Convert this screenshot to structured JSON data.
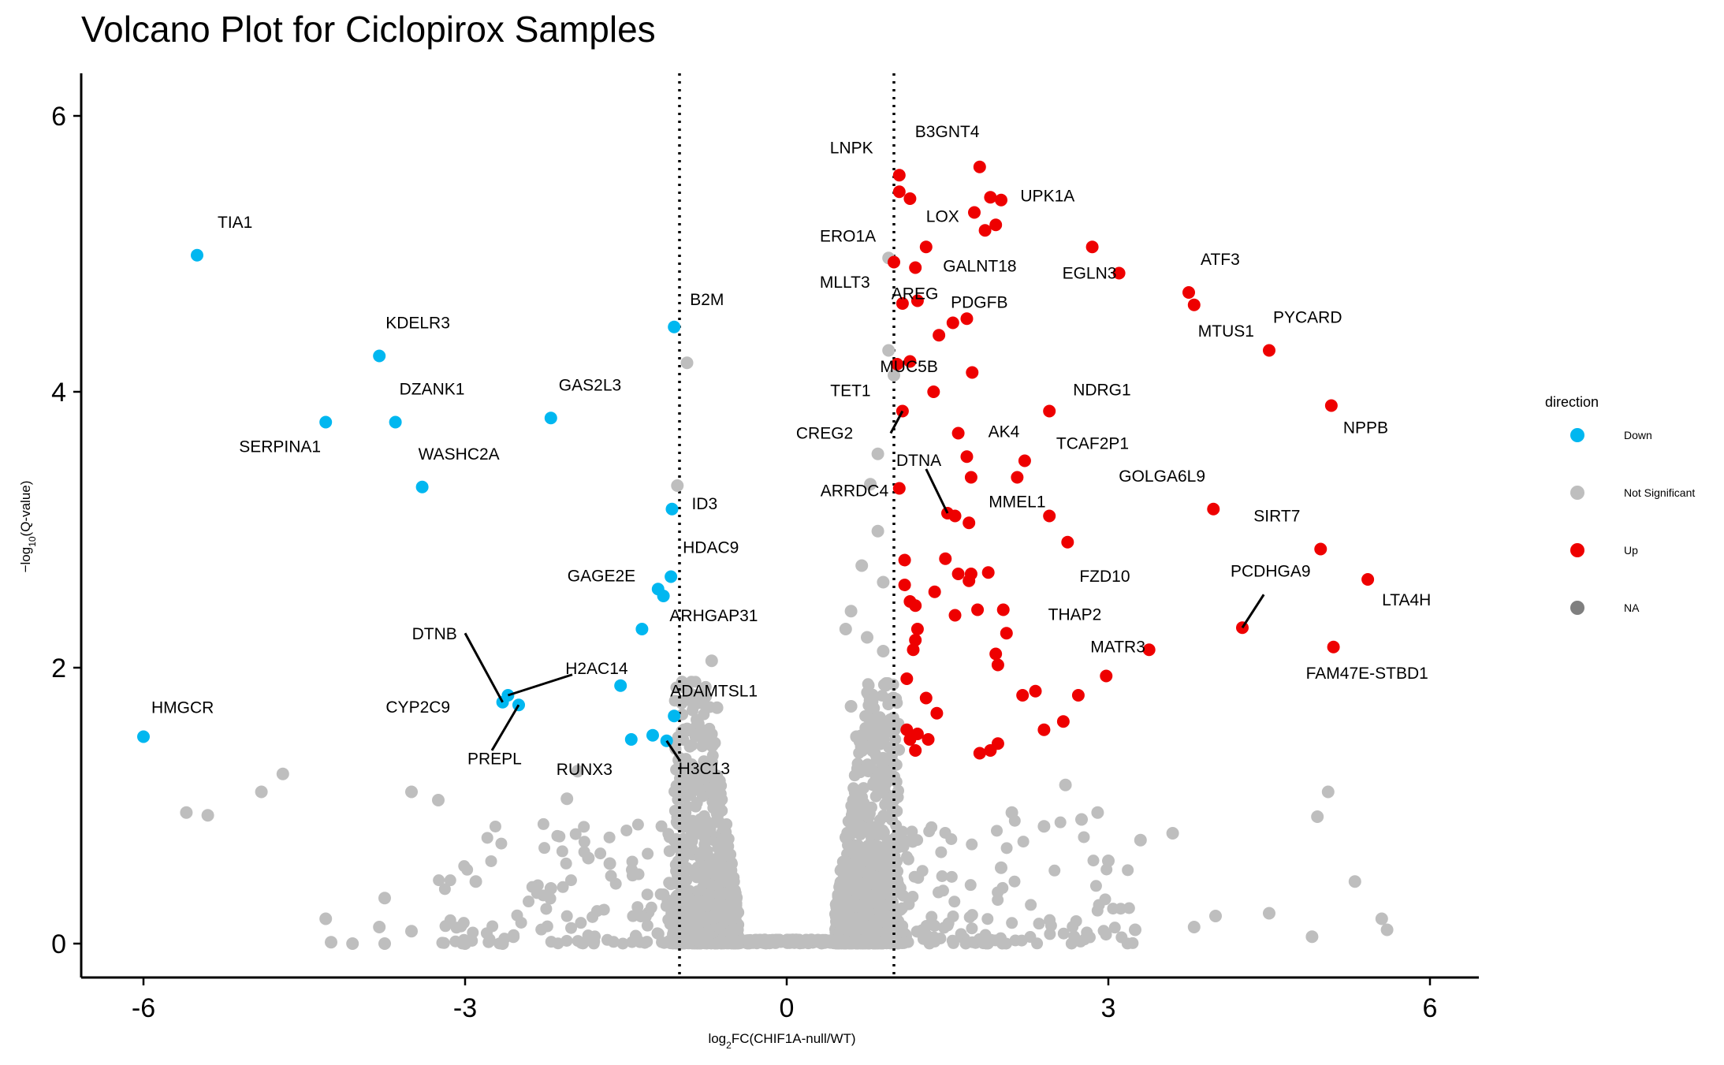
{
  "chart_data": {
    "type": "scatter",
    "title": "Volcano Plot for Ciclopirox Samples",
    "xlabel": "log2FC(CHIF1A-null/WT)",
    "ylabel": "-log10(Q-value)",
    "xlim": [
      -6.6,
      6.6
    ],
    "ylim": [
      -0.3,
      6.3
    ],
    "xticks": [
      "-6",
      "-3",
      "0",
      "3",
      "6"
    ],
    "yticks": [
      "0",
      "2",
      "4",
      "6"
    ],
    "threshold_lines_x": [
      -1,
      1
    ],
    "grid": false,
    "legend": {
      "title": "direction",
      "position": "right",
      "entries": [
        {
          "label": "Down",
          "color": "#00B7F0"
        },
        {
          "label": "Not Significant",
          "color": "#BEBEBE"
        },
        {
          "label": "Up",
          "color": "#EE0000"
        },
        {
          "label": "NA",
          "color": "#7F7F7F"
        }
      ]
    },
    "colors": {
      "Down": "#00B7F0",
      "Not Significant": "#BEBEBE",
      "Up": "#EE0000"
    },
    "series": [
      {
        "name": "Down",
        "points": [
          {
            "x": -5.5,
            "y": 4.99,
            "label": "TIA1"
          },
          {
            "x": -3.8,
            "y": 4.26,
            "label": "KDELR3"
          },
          {
            "x": -4.3,
            "y": 3.78,
            "label": "SERPINA1"
          },
          {
            "x": -3.65,
            "y": 3.78,
            "label": "DZANK1"
          },
          {
            "x": -2.2,
            "y": 3.81,
            "label": "GAS2L3"
          },
          {
            "x": -3.4,
            "y": 3.31,
            "label": "WASHC2A"
          },
          {
            "x": -1.05,
            "y": 4.47,
            "label": "B2M"
          },
          {
            "x": -1.07,
            "y": 3.15,
            "label": "ID3"
          },
          {
            "x": -1.08,
            "y": 2.66,
            "label": "HDAC9"
          },
          {
            "x": -1.2,
            "y": 2.57,
            "label": "GAGE2E"
          },
          {
            "x": -1.15,
            "y": 2.52
          },
          {
            "x": -1.35,
            "y": 2.28,
            "label": "ARHGAP31"
          },
          {
            "x": -1.55,
            "y": 1.87,
            "label": "H2AC14"
          },
          {
            "x": -2.65,
            "y": 1.75,
            "label": "DTNB"
          },
          {
            "x": -2.6,
            "y": 1.8,
            "label": "CYP2C9"
          },
          {
            "x": -2.5,
            "y": 1.73,
            "label": "PREPL"
          },
          {
            "x": -1.05,
            "y": 1.65,
            "label": "ADAMTSL1"
          },
          {
            "x": -1.45,
            "y": 1.48,
            "label": "RUNX3"
          },
          {
            "x": -1.25,
            "y": 1.51
          },
          {
            "x": -1.12,
            "y": 1.47,
            "label": "H3C13"
          },
          {
            "x": -6.0,
            "y": 1.5,
            "label": "HMGCR"
          }
        ]
      },
      {
        "name": "Up",
        "points": [
          {
            "x": 1.05,
            "y": 5.57,
            "label": "LNPK"
          },
          {
            "x": 1.05,
            "y": 5.45
          },
          {
            "x": 1.15,
            "y": 5.4
          },
          {
            "x": 1.8,
            "y": 5.63,
            "label": "B3GNT4"
          },
          {
            "x": 1.9,
            "y": 5.41,
            "label": "UPK1A"
          },
          {
            "x": 2.0,
            "y": 5.39
          },
          {
            "x": 1.75,
            "y": 5.3
          },
          {
            "x": 1.95,
            "y": 5.21,
            "label": "FZD10"
          },
          {
            "x": 1.85,
            "y": 5.17
          },
          {
            "x": 1.3,
            "y": 5.05,
            "label": "LOX"
          },
          {
            "x": 1.0,
            "y": 4.94,
            "label": "ERO1A"
          },
          {
            "x": 1.2,
            "y": 4.9,
            "label": "GALNT18"
          },
          {
            "x": 2.85,
            "y": 5.05,
            "label": "EGLN3"
          },
          {
            "x": 3.1,
            "y": 4.86
          },
          {
            "x": 3.75,
            "y": 4.72,
            "label": "ATF3"
          },
          {
            "x": 3.8,
            "y": 4.63,
            "label": "MTUS1"
          },
          {
            "x": 1.08,
            "y": 4.64,
            "label": "MLLT3"
          },
          {
            "x": 1.22,
            "y": 4.66
          },
          {
            "x": 1.55,
            "y": 4.5,
            "label": "AREG"
          },
          {
            "x": 1.68,
            "y": 4.53
          },
          {
            "x": 1.42,
            "y": 4.41,
            "label": "PDGFB"
          },
          {
            "x": 1.03,
            "y": 4.2
          },
          {
            "x": 1.15,
            "y": 4.22
          },
          {
            "x": 1.73,
            "y": 4.14,
            "label": "TET1"
          },
          {
            "x": 4.5,
            "y": 4.3,
            "label": "PYCARD"
          },
          {
            "x": 1.37,
            "y": 4.0,
            "label": "MUC5B"
          },
          {
            "x": 2.45,
            "y": 3.86,
            "label": "NDRG1"
          },
          {
            "x": 1.08,
            "y": 3.86,
            "label": "CREG2"
          },
          {
            "x": 5.08,
            "y": 3.9,
            "label": "NPPB"
          },
          {
            "x": 1.6,
            "y": 3.7,
            "label": "AK4"
          },
          {
            "x": 1.68,
            "y": 3.53
          },
          {
            "x": 2.22,
            "y": 3.5,
            "label": "TCAF2P1"
          },
          {
            "x": 2.15,
            "y": 3.38
          },
          {
            "x": 1.72,
            "y": 3.38
          },
          {
            "x": 1.05,
            "y": 3.3,
            "label": "ARRDC4"
          },
          {
            "x": 1.5,
            "y": 3.12,
            "label": "DTNA"
          },
          {
            "x": 1.57,
            "y": 3.1
          },
          {
            "x": 1.7,
            "y": 3.05,
            "label": "MMEL1"
          },
          {
            "x": 2.45,
            "y": 3.1
          },
          {
            "x": 2.62,
            "y": 2.91,
            "label": "FZD10"
          },
          {
            "x": 3.98,
            "y": 3.15,
            "label": "GOLGA6L9"
          },
          {
            "x": 4.98,
            "y": 2.86,
            "label": "SIRT7"
          },
          {
            "x": 5.42,
            "y": 2.64,
            "label": "LTA4H"
          },
          {
            "x": 4.25,
            "y": 2.29,
            "label": "PCDHGA9"
          },
          {
            "x": 5.1,
            "y": 2.15,
            "label": "FAM47E-STBD1"
          },
          {
            "x": 3.38,
            "y": 2.13,
            "label": "THAP2"
          },
          {
            "x": 2.98,
            "y": 1.94,
            "label": "MATR3"
          },
          {
            "x": 1.1,
            "y": 2.78
          },
          {
            "x": 1.48,
            "y": 2.79
          },
          {
            "x": 1.6,
            "y": 2.68
          },
          {
            "x": 1.72,
            "y": 2.68
          },
          {
            "x": 1.88,
            "y": 2.69
          },
          {
            "x": 1.7,
            "y": 2.63
          },
          {
            "x": 1.1,
            "y": 2.6
          },
          {
            "x": 1.15,
            "y": 2.48
          },
          {
            "x": 1.2,
            "y": 2.45
          },
          {
            "x": 1.38,
            "y": 2.55
          },
          {
            "x": 1.78,
            "y": 2.42
          },
          {
            "x": 2.02,
            "y": 2.42
          },
          {
            "x": 1.57,
            "y": 2.38
          },
          {
            "x": 1.22,
            "y": 2.28
          },
          {
            "x": 1.2,
            "y": 2.2
          },
          {
            "x": 1.18,
            "y": 2.13
          },
          {
            "x": 2.05,
            "y": 2.25
          },
          {
            "x": 1.95,
            "y": 2.1
          },
          {
            "x": 1.97,
            "y": 2.02
          },
          {
            "x": 1.12,
            "y": 1.92
          },
          {
            "x": 1.3,
            "y": 1.78
          },
          {
            "x": 1.4,
            "y": 1.67
          },
          {
            "x": 2.2,
            "y": 1.8
          },
          {
            "x": 2.32,
            "y": 1.83
          },
          {
            "x": 2.72,
            "y": 1.8
          },
          {
            "x": 2.58,
            "y": 1.61
          },
          {
            "x": 2.4,
            "y": 1.55
          },
          {
            "x": 1.12,
            "y": 1.55
          },
          {
            "x": 1.22,
            "y": 1.52
          },
          {
            "x": 1.15,
            "y": 1.48
          },
          {
            "x": 1.32,
            "y": 1.48
          },
          {
            "x": 1.2,
            "y": 1.4
          },
          {
            "x": 1.9,
            "y": 1.4
          },
          {
            "x": 1.8,
            "y": 1.38
          },
          {
            "x": 1.97,
            "y": 1.45
          }
        ]
      },
      {
        "name": "Not Significant",
        "points": [
          {
            "x": -0.93,
            "y": 4.21
          },
          {
            "x": -1.02,
            "y": 3.32
          },
          {
            "x": 0.95,
            "y": 4.97
          },
          {
            "x": 0.95,
            "y": 4.3
          },
          {
            "x": 1.0,
            "y": 4.12
          },
          {
            "x": 0.85,
            "y": 3.55
          },
          {
            "x": 0.78,
            "y": 3.33
          },
          {
            "x": 0.85,
            "y": 2.99
          },
          {
            "x": 0.7,
            "y": 2.74
          },
          {
            "x": 0.9,
            "y": 2.62
          },
          {
            "x": 0.6,
            "y": 2.41
          },
          {
            "x": 0.55,
            "y": 2.28
          },
          {
            "x": 0.75,
            "y": 2.22
          },
          {
            "x": 0.9,
            "y": 2.12
          },
          {
            "x": -0.7,
            "y": 2.05
          },
          {
            "x": -0.65,
            "y": 1.71
          },
          {
            "x": 0.6,
            "y": 1.72
          },
          {
            "x": 0.8,
            "y": 1.6
          },
          {
            "x": -0.8,
            "y": 1.53
          },
          {
            "x": -0.75,
            "y": 1.45
          },
          {
            "x": 0.65,
            "y": 1.5
          },
          {
            "x": -1.95,
            "y": 1.25
          },
          {
            "x": -2.05,
            "y": 1.05
          },
          {
            "x": -4.7,
            "y": 1.23
          },
          {
            "x": -4.9,
            "y": 1.1
          },
          {
            "x": -3.5,
            "y": 1.1
          },
          {
            "x": -3.25,
            "y": 1.04
          },
          {
            "x": -5.6,
            "y": 0.95
          },
          {
            "x": -5.4,
            "y": 0.93
          },
          {
            "x": -2.9,
            "y": 0.45
          },
          {
            "x": -3.75,
            "y": 0.33
          },
          {
            "x": -4.3,
            "y": 0.18
          },
          {
            "x": -3.8,
            "y": 0.12
          },
          {
            "x": -3.5,
            "y": 0.09
          },
          {
            "x": -4.25,
            "y": 0.01
          },
          {
            "x": -4.05,
            "y": 0.0
          },
          {
            "x": -3.75,
            "y": 0.0
          },
          {
            "x": -3.0,
            "y": 0.0
          },
          {
            "x": -2.65,
            "y": 0.0
          },
          {
            "x": -2.55,
            "y": 0.05
          },
          {
            "x": -2.2,
            "y": 0.4
          },
          {
            "x": -1.85,
            "y": 0.62
          },
          {
            "x": -1.65,
            "y": 0.58
          },
          {
            "x": 2.6,
            "y": 1.15
          },
          {
            "x": 2.9,
            "y": 0.95
          },
          {
            "x": 3.3,
            "y": 0.75
          },
          {
            "x": 3.6,
            "y": 0.8
          },
          {
            "x": 5.05,
            "y": 1.1
          },
          {
            "x": 4.95,
            "y": 0.92
          },
          {
            "x": 5.3,
            "y": 0.45
          },
          {
            "x": 5.55,
            "y": 0.18
          },
          {
            "x": 5.6,
            "y": 0.1
          },
          {
            "x": 4.5,
            "y": 0.22
          },
          {
            "x": 4.0,
            "y": 0.2
          },
          {
            "x": 3.8,
            "y": 0.12
          },
          {
            "x": 4.9,
            "y": 0.05
          },
          {
            "x": 3.25,
            "y": 0.1
          },
          {
            "x": 2.1,
            "y": 0.95
          },
          {
            "x": 2.4,
            "y": 0.85
          },
          {
            "x": 2.75,
            "y": 0.9
          },
          {
            "x": 3.0,
            "y": 0.6
          },
          {
            "x": 2.0,
            "y": 0.55
          }
        ]
      }
    ]
  }
}
